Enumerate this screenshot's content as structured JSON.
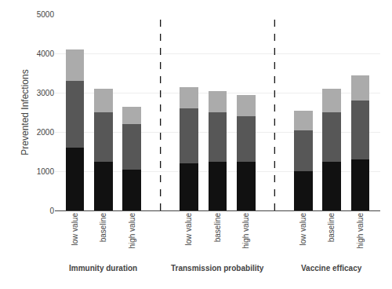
{
  "chart_data": {
    "type": "bar",
    "stacked": true,
    "categories": [
      "low value",
      "baseline",
      "high value",
      "low value",
      "baseline",
      "high value",
      "low value",
      "baseline",
      "high value"
    ],
    "groups": [
      "Immunity duration",
      "Transmission probability",
      "Vaccine efficacy"
    ],
    "series": [
      {
        "color": "#111111",
        "values": [
          1600,
          1250,
          1050,
          1200,
          1250,
          1250,
          1000,
          1250,
          1300
        ]
      },
      {
        "color": "#575757",
        "values": [
          1700,
          1250,
          1150,
          1400,
          1250,
          1150,
          1050,
          1250,
          1500
        ]
      },
      {
        "color": "#ababab",
        "values": [
          800,
          600,
          450,
          550,
          550,
          550,
          500,
          600,
          650
        ]
      }
    ],
    "ylabel": "Prevented Infections",
    "ylim": [
      0,
      5000
    ],
    "yticks": [
      0,
      1000,
      2000,
      3000,
      4000,
      5000
    ],
    "grid": true
  }
}
